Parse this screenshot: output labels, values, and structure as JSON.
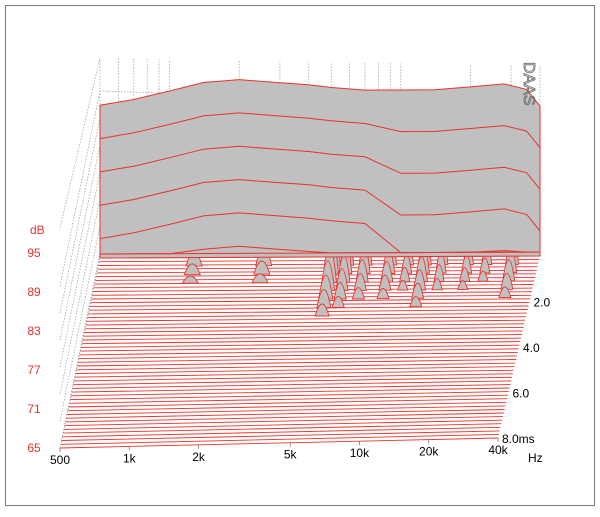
{
  "chart_data": {
    "type": "waterfall",
    "watermark": "DAAS",
    "z_unit": "dB",
    "z_ticks": [
      "95",
      "89",
      "83",
      "77",
      "71",
      "65"
    ],
    "x_unit": "Hz",
    "x_ticks": [
      "500",
      "1k",
      "2k",
      "5k",
      "10k",
      "20k",
      "40k"
    ],
    "x_tick_values": [
      500,
      1000,
      2000,
      5000,
      10000,
      20000,
      40000
    ],
    "y_unit": "ms",
    "y_ticks": [
      "2.0",
      "4.0",
      "6.0",
      "8.0ms"
    ],
    "y_tick_values": [
      2.0,
      4.0,
      6.0,
      8.0
    ],
    "colors": {
      "curve": "#e8322e",
      "fill": "#c0c0c0",
      "grid": "#9a9a9a",
      "label": "#e8322e",
      "xlabel": "#000000",
      "frame": "#7a7a7a"
    },
    "front_response": {
      "x": [
        500,
        700,
        1000,
        1400,
        2000,
        2800,
        4000,
        5000,
        7000,
        10000,
        14000,
        20000,
        28000,
        35000,
        40000
      ],
      "y": [
        92.5,
        93.5,
        95.0,
        96.5,
        97.0,
        96.5,
        96.0,
        95.5,
        95.0,
        95.0,
        95.0,
        95.5,
        96.0,
        95.0,
        92.0
      ]
    }
  }
}
